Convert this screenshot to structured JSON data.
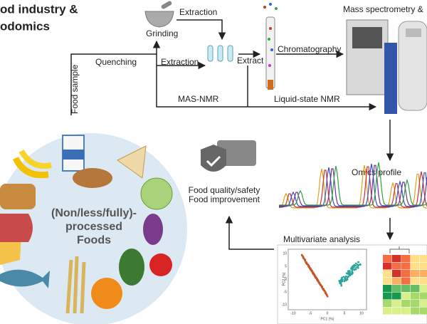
{
  "header": {
    "title_lines": [
      "od industry &",
      "odomics"
    ]
  },
  "steps": {
    "extraction_top": "Extraction",
    "grinding": "Grinding",
    "quenching": "Quenching",
    "extraction": "Extraction",
    "extract": "Extract",
    "chromatography": "Chromatography",
    "mass_spec": "Mass spectrometry &",
    "food_sample": "Food sample",
    "mas_nmr": "MAS-NMR",
    "liquid_nmr": "Liquid-state NMR",
    "omics_profile": "Omics profile",
    "multivariate": "Multivariate analysis"
  },
  "outcome": {
    "lines": [
      "Food quality/safety",
      "Food improvement"
    ]
  },
  "foods": {
    "lines": [
      "(Non/less/fully)-",
      "processed",
      "Foods"
    ]
  },
  "pca": {
    "y_label": "PC2 (%)",
    "x_label": "PC1 (%)",
    "x_ticks": [
      "-10",
      "-5",
      "0",
      "5",
      "10"
    ],
    "y_ticks": [
      "10",
      "5",
      "0",
      "-5",
      "-10"
    ]
  }
}
